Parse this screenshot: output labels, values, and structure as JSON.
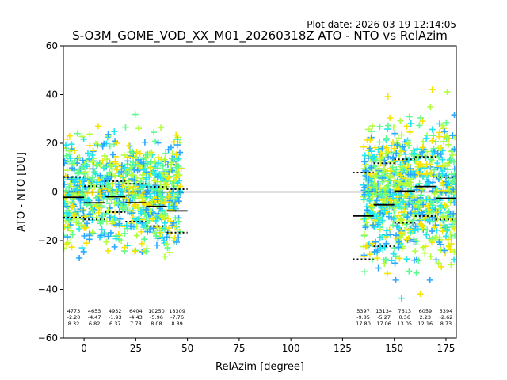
{
  "chart_data": {
    "type": "scatter",
    "plot_date": "Plot date: 2026-03-19 12:14:05",
    "title": "S-O3M_GOME_VOD_XX_M01_20260318Z ATO - NTO vs RelAzim",
    "xlabel": "RelAzim [degree]",
    "ylabel": "ATO - NTO [DU]",
    "xlim": [
      -10,
      180
    ],
    "ylim": [
      -60,
      60
    ],
    "xticks": [
      0,
      25,
      50,
      75,
      100,
      125,
      150,
      175
    ],
    "yticks": [
      -60,
      -40,
      -20,
      0,
      20,
      40,
      60
    ],
    "grid": false,
    "reference_line": 0,
    "point_clusters": [
      {
        "x_range": [
          -10,
          47
        ],
        "y_center": 0,
        "y_spread": 22,
        "colors": [
          "#5dfc8e",
          "#20e6f2",
          "#f7e400",
          "#b3ff3c",
          "#29a9ff"
        ]
      },
      {
        "x_range": [
          135,
          180
        ],
        "y_center": 0,
        "y_spread": 28,
        "colors": [
          "#5dfc8e",
          "#20e6f2",
          "#f7e400",
          "#b3ff3c",
          "#29a9ff"
        ]
      }
    ],
    "bins": [
      {
        "center": -5,
        "count": "4773",
        "mean": "-2.20",
        "std": "8.32",
        "y_mean": -2.2,
        "y_std": 8.32
      },
      {
        "center": 5,
        "count": "4653",
        "mean": "-4.47",
        "std": "6.82",
        "y_mean": -4.47,
        "y_std": 6.82
      },
      {
        "center": 15,
        "count": "4932",
        "mean": "-1.93",
        "std": "6.37",
        "y_mean": -1.93,
        "y_std": 6.37
      },
      {
        "center": 25,
        "count": "6404",
        "mean": "-4.43",
        "std": "7.78",
        "y_mean": -4.43,
        "y_std": 7.78
      },
      {
        "center": 35,
        "count": "10250",
        "mean": "-5.96",
        "std": "8.08",
        "y_mean": -5.96,
        "y_std": 8.08
      },
      {
        "center": 45,
        "count": "18309",
        "mean": "-7.76",
        "std": "8.89",
        "y_mean": -7.76,
        "y_std": 8.89
      },
      {
        "center": 135,
        "count": "5397",
        "mean": "-9.85",
        "std": "17.80",
        "y_mean": -9.85,
        "y_std": 17.8
      },
      {
        "center": 145,
        "count": "13134",
        "mean": "-5.27",
        "std": "17.06",
        "y_mean": -5.27,
        "y_std": 17.06
      },
      {
        "center": 155,
        "count": "7613",
        "mean": "0.36",
        "std": "13.05",
        "y_mean": 0.36,
        "y_std": 13.05
      },
      {
        "center": 165,
        "count": "6059",
        "mean": "2.23",
        "std": "12.16",
        "y_mean": 2.23,
        "y_std": 12.16
      },
      {
        "center": 175,
        "count": "5394",
        "mean": "-2.62",
        "std": "8.73",
        "y_mean": -2.62,
        "y_std": 8.73
      }
    ]
  }
}
